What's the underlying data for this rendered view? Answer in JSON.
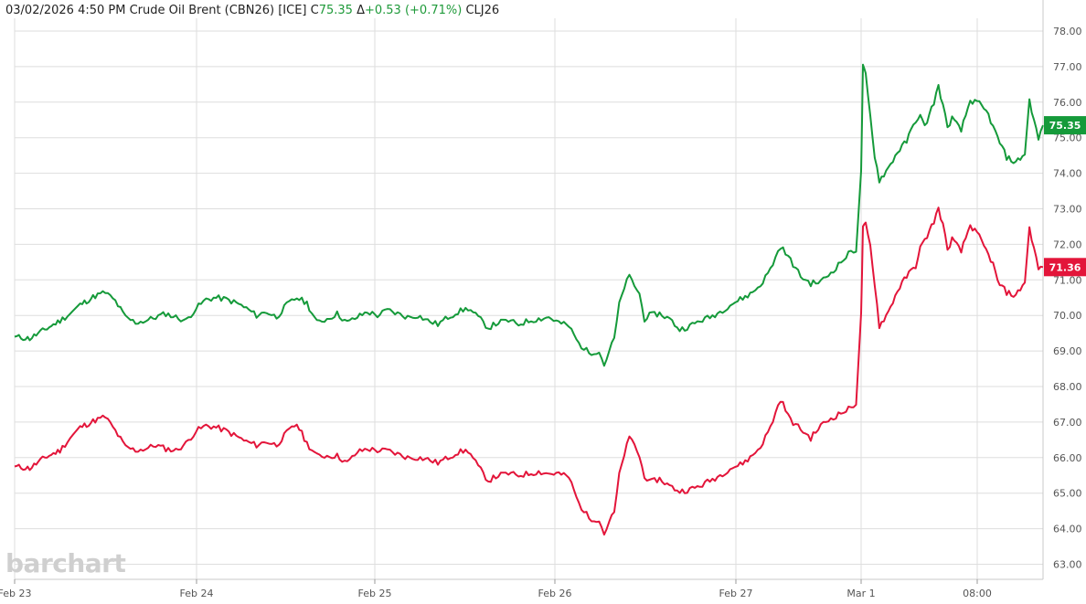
{
  "header": {
    "datetime": "03/02/2026",
    "time": "4:50 PM",
    "instrument": "Crude Oil Brent (CBN26) [ICE]",
    "close_label": "C",
    "close_value": "75.35",
    "change_label": "Δ",
    "change_value": "+0.53 (+0.71%)",
    "compare_symbol": "CLJ26"
  },
  "watermark": "barchart",
  "colors": {
    "green": "#159a3a",
    "red": "#e3153a",
    "grid": "#dedede",
    "axis": "#555555"
  },
  "chart_data": {
    "type": "line",
    "ylim": [
      62.6,
      78.4
    ],
    "grid": true,
    "y_ticks": [
      "63.00",
      "64.00",
      "65.00",
      "66.00",
      "67.00",
      "68.00",
      "69.00",
      "70.00",
      "71.00",
      "72.00",
      "73.00",
      "74.00",
      "75.00",
      "76.00",
      "77.00",
      "78.00"
    ],
    "x_ticks": [
      "Feb 23",
      "Feb 24",
      "Feb 25",
      "Feb 26",
      "Feb 27",
      "Mar 1",
      "08:00"
    ],
    "series": [
      {
        "name": "CBN26",
        "color": "#159a3a",
        "last_label": "75.35",
        "values": [
          [
            0,
            69.4
          ],
          [
            3,
            69.35
          ],
          [
            6,
            69.6
          ],
          [
            9,
            69.85
          ],
          [
            11,
            70.05
          ],
          [
            13,
            70.3
          ],
          [
            16,
            70.55
          ],
          [
            18,
            70.65
          ],
          [
            20,
            70.4
          ],
          [
            22,
            69.95
          ],
          [
            24,
            69.8
          ],
          [
            26,
            69.85
          ],
          [
            28,
            69.95
          ],
          [
            30,
            70.05
          ],
          [
            32,
            69.95
          ],
          [
            34,
            69.85
          ],
          [
            36,
            70.2
          ],
          [
            38,
            70.45
          ],
          [
            40,
            70.5
          ],
          [
            42,
            70.45
          ],
          [
            44,
            70.35
          ],
          [
            46,
            70.2
          ],
          [
            48,
            70.0
          ],
          [
            50,
            70.1
          ],
          [
            52,
            69.95
          ],
          [
            54,
            70.3
          ],
          [
            56,
            70.5
          ],
          [
            58,
            70.35
          ],
          [
            60,
            69.8
          ],
          [
            62,
            69.9
          ],
          [
            64,
            70.05
          ],
          [
            66,
            69.8
          ],
          [
            68,
            69.95
          ],
          [
            70,
            70.1
          ],
          [
            72,
            70.0
          ],
          [
            74,
            70.15
          ],
          [
            76,
            70.05
          ],
          [
            78,
            69.95
          ],
          [
            80,
            70.0
          ],
          [
            82,
            69.85
          ],
          [
            84,
            69.75
          ],
          [
            86,
            69.95
          ],
          [
            88,
            70.1
          ],
          [
            90,
            70.2
          ],
          [
            92,
            69.95
          ],
          [
            94,
            69.65
          ],
          [
            96,
            69.8
          ],
          [
            98,
            69.85
          ],
          [
            100,
            69.75
          ],
          [
            102,
            69.85
          ],
          [
            104,
            69.9
          ],
          [
            106,
            69.95
          ],
          [
            108,
            69.8
          ],
          [
            110,
            69.7
          ],
          [
            112,
            69.2
          ],
          [
            114,
            68.95
          ],
          [
            116,
            69.0
          ],
          [
            117,
            68.6
          ],
          [
            118,
            69.0
          ],
          [
            119,
            69.35
          ],
          [
            120,
            70.3
          ],
          [
            121,
            70.8
          ],
          [
            122,
            71.1
          ],
          [
            123,
            70.85
          ],
          [
            124,
            70.6
          ],
          [
            125,
            69.9
          ],
          [
            126,
            70.0
          ],
          [
            128,
            70.05
          ],
          [
            130,
            69.9
          ],
          [
            132,
            69.6
          ],
          [
            134,
            69.7
          ],
          [
            136,
            69.85
          ],
          [
            138,
            69.95
          ],
          [
            140,
            70.1
          ],
          [
            142,
            70.3
          ],
          [
            144,
            70.45
          ],
          [
            146,
            70.6
          ],
          [
            148,
            70.85
          ],
          [
            150,
            71.3
          ],
          [
            152,
            71.95
          ],
          [
            154,
            71.55
          ],
          [
            156,
            71.1
          ],
          [
            158,
            70.9
          ],
          [
            160,
            70.95
          ],
          [
            162,
            71.2
          ],
          [
            164,
            71.5
          ],
          [
            166,
            71.8
          ],
          [
            167,
            71.85
          ],
          [
            168,
            74.0
          ],
          [
            168.4,
            77.0
          ],
          [
            169,
            76.75
          ],
          [
            170,
            75.6
          ],
          [
            171,
            74.5
          ],
          [
            172,
            73.8
          ],
          [
            174,
            74.15
          ],
          [
            176,
            74.6
          ],
          [
            178,
            74.9
          ],
          [
            180,
            75.5
          ],
          [
            181,
            75.6
          ],
          [
            182,
            75.3
          ],
          [
            184,
            76.0
          ],
          [
            185,
            76.45
          ],
          [
            186,
            75.9
          ],
          [
            187,
            75.3
          ],
          [
            188,
            75.55
          ],
          [
            190,
            75.2
          ],
          [
            192,
            76.05
          ],
          [
            194,
            75.95
          ],
          [
            196,
            75.65
          ],
          [
            197,
            75.3
          ],
          [
            198,
            75.0
          ],
          [
            200,
            74.45
          ],
          [
            202,
            74.3
          ],
          [
            204,
            74.55
          ],
          [
            205,
            76.05
          ],
          [
            206,
            75.5
          ],
          [
            207,
            74.95
          ],
          [
            208,
            75.35
          ]
        ]
      },
      {
        "name": "CLJ26",
        "color": "#e3153a",
        "last_label": "71.36",
        "values": [
          [
            0,
            65.75
          ],
          [
            3,
            65.7
          ],
          [
            6,
            66.0
          ],
          [
            9,
            66.2
          ],
          [
            11,
            66.55
          ],
          [
            13,
            66.85
          ],
          [
            16,
            67.05
          ],
          [
            18,
            67.15
          ],
          [
            20,
            66.75
          ],
          [
            22,
            66.3
          ],
          [
            24,
            66.2
          ],
          [
            26,
            66.25
          ],
          [
            28,
            66.35
          ],
          [
            30,
            66.25
          ],
          [
            32,
            66.2
          ],
          [
            34,
            66.4
          ],
          [
            36,
            66.75
          ],
          [
            38,
            66.9
          ],
          [
            40,
            66.85
          ],
          [
            42,
            66.75
          ],
          [
            44,
            66.6
          ],
          [
            46,
            66.45
          ],
          [
            48,
            66.35
          ],
          [
            50,
            66.45
          ],
          [
            52,
            66.35
          ],
          [
            54,
            66.7
          ],
          [
            56,
            66.95
          ],
          [
            58,
            66.4
          ],
          [
            60,
            66.05
          ],
          [
            62,
            66.05
          ],
          [
            64,
            66.05
          ],
          [
            66,
            65.85
          ],
          [
            68,
            66.15
          ],
          [
            70,
            66.25
          ],
          [
            72,
            66.2
          ],
          [
            74,
            66.2
          ],
          [
            76,
            66.1
          ],
          [
            78,
            66.0
          ],
          [
            80,
            66.0
          ],
          [
            82,
            65.95
          ],
          [
            84,
            65.85
          ],
          [
            86,
            66.0
          ],
          [
            88,
            66.15
          ],
          [
            90,
            66.2
          ],
          [
            92,
            65.75
          ],
          [
            94,
            65.35
          ],
          [
            96,
            65.5
          ],
          [
            98,
            65.55
          ],
          [
            100,
            65.5
          ],
          [
            102,
            65.55
          ],
          [
            104,
            65.6
          ],
          [
            106,
            65.55
          ],
          [
            108,
            65.55
          ],
          [
            110,
            65.45
          ],
          [
            112,
            64.7
          ],
          [
            114,
            64.3
          ],
          [
            116,
            64.25
          ],
          [
            117,
            63.85
          ],
          [
            118,
            64.2
          ],
          [
            119,
            64.45
          ],
          [
            120,
            65.5
          ],
          [
            121,
            66.1
          ],
          [
            122,
            66.55
          ],
          [
            123,
            66.4
          ],
          [
            124,
            66.0
          ],
          [
            125,
            65.5
          ],
          [
            126,
            65.3
          ],
          [
            128,
            65.4
          ],
          [
            130,
            65.2
          ],
          [
            132,
            65.05
          ],
          [
            134,
            65.1
          ],
          [
            136,
            65.2
          ],
          [
            138,
            65.35
          ],
          [
            140,
            65.5
          ],
          [
            142,
            65.7
          ],
          [
            144,
            65.8
          ],
          [
            146,
            66.0
          ],
          [
            148,
            66.3
          ],
          [
            150,
            66.85
          ],
          [
            152,
            67.65
          ],
          [
            154,
            67.05
          ],
          [
            156,
            66.8
          ],
          [
            158,
            66.55
          ],
          [
            160,
            66.9
          ],
          [
            162,
            67.1
          ],
          [
            164,
            67.25
          ],
          [
            166,
            67.4
          ],
          [
            167,
            67.55
          ],
          [
            168,
            70.0
          ],
          [
            168.4,
            72.45
          ],
          [
            169,
            72.55
          ],
          [
            170,
            71.95
          ],
          [
            171,
            70.9
          ],
          [
            172,
            69.7
          ],
          [
            174,
            70.1
          ],
          [
            176,
            70.7
          ],
          [
            178,
            71.1
          ],
          [
            180,
            71.4
          ],
          [
            181,
            71.9
          ],
          [
            182,
            72.1
          ],
          [
            184,
            72.65
          ],
          [
            185,
            73.0
          ],
          [
            186,
            72.55
          ],
          [
            187,
            71.85
          ],
          [
            188,
            72.15
          ],
          [
            190,
            71.8
          ],
          [
            192,
            72.55
          ],
          [
            194,
            72.2
          ],
          [
            196,
            71.7
          ],
          [
            197,
            71.45
          ],
          [
            198,
            70.95
          ],
          [
            200,
            70.65
          ],
          [
            202,
            70.55
          ],
          [
            204,
            70.95
          ],
          [
            205,
            72.45
          ],
          [
            206,
            71.9
          ],
          [
            207,
            71.3
          ],
          [
            208,
            71.36
          ]
        ]
      }
    ]
  }
}
